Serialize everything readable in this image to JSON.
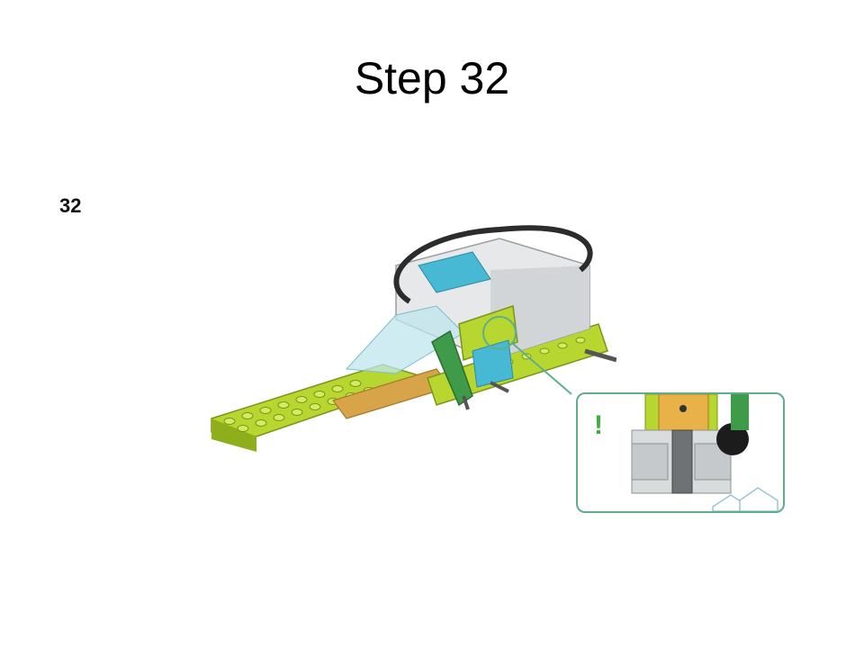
{
  "slide": {
    "title": "Step 32"
  },
  "instruction": {
    "step_number": "32",
    "callout_mark": "!"
  },
  "colors": {
    "lime": "#b7d630",
    "lime_dark": "#8fae1c",
    "tan": "#d8a44a",
    "cyan": "#48b9d4",
    "trans_cyan": "#bfe6ee",
    "green": "#3f9a4a",
    "light_gray": "#d9dcdd",
    "dark_gray": "#6e7275",
    "callout_border": "#5fae8c"
  }
}
